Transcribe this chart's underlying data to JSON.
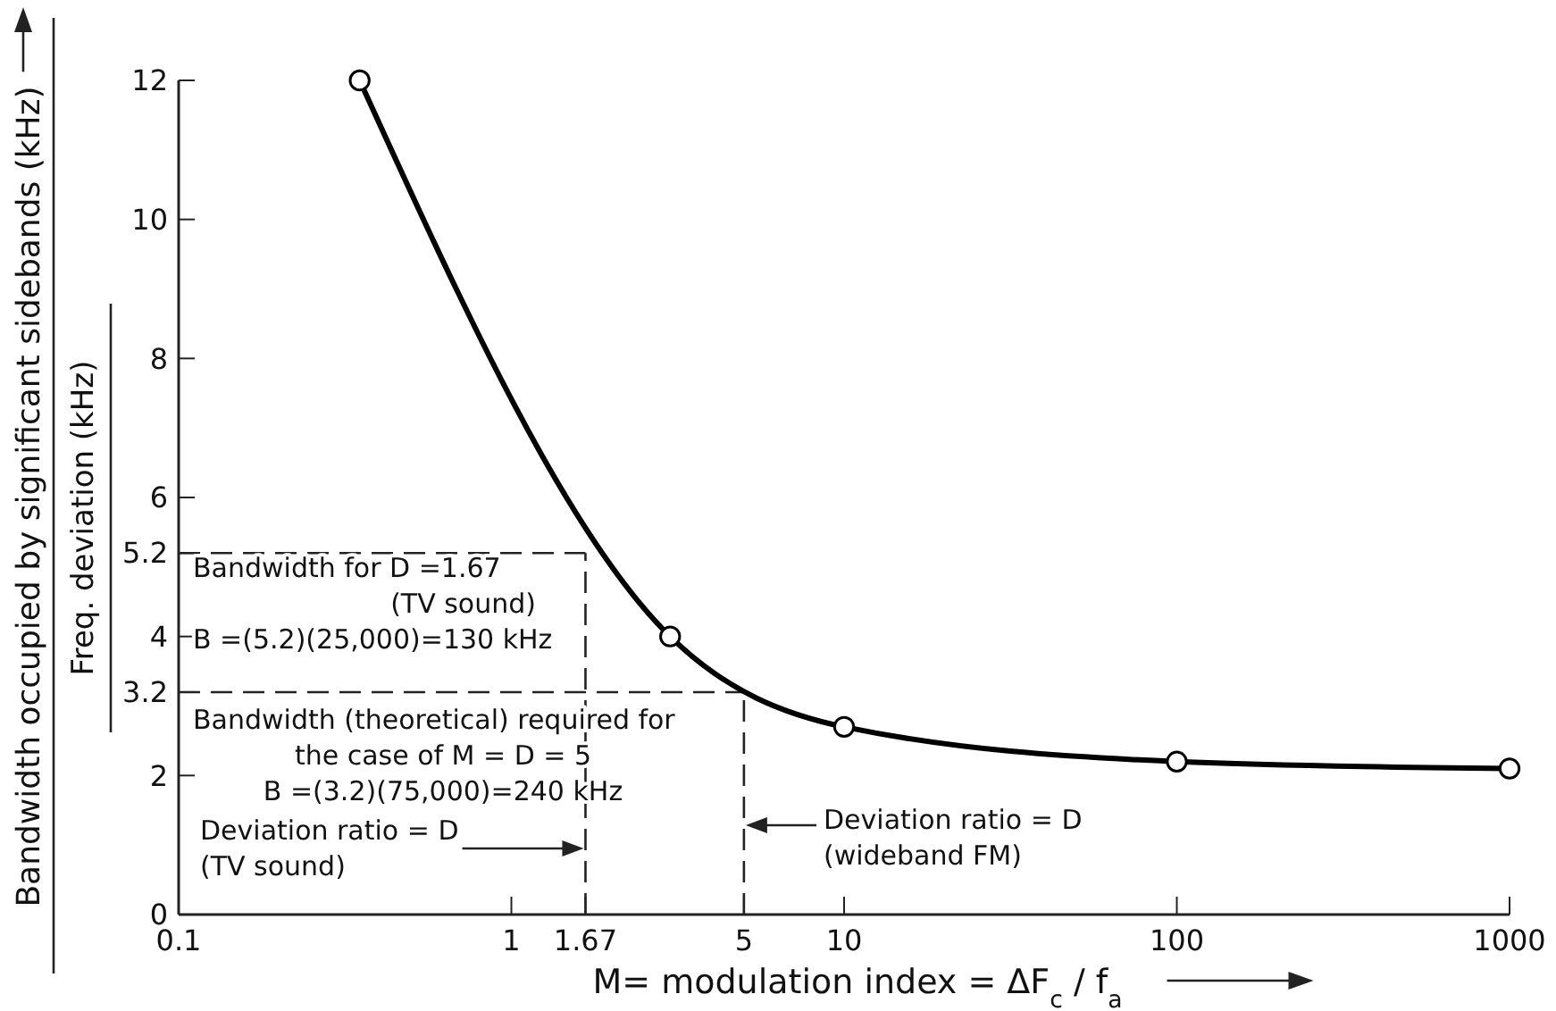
{
  "chart_data": {
    "type": "line",
    "xlabel": "M= modulation index = ΔF$_{c}$ / f$_{a}$",
    "ylabel": "Bandwidth occupied by significant sidebands (kHz)",
    "x": [
      0.35,
      3,
      10,
      100,
      1000
    ],
    "series": [
      {
        "color": "#000000",
        "values": [
          12,
          4,
          2.7,
          2.2,
          2.1
        ]
      }
    ],
    "marker": "circle",
    "log": "x",
    "grid": false,
    "xlim": [
      0.1,
      1000
    ],
    "xticks": [
      0.1,
      1,
      1.67,
      5,
      10,
      100,
      1000
    ],
    "ylim": [
      0,
      12
    ],
    "yticks": [
      0,
      2,
      3.2,
      4,
      5.2,
      6,
      8,
      10,
      12
    ],
    "ref_lines": [
      {
        "axis": "y",
        "value": 5.2,
        "line_style": "dashed"
      },
      {
        "axis": "y",
        "value": 3.2,
        "line_style": "dashed"
      },
      {
        "axis": "x",
        "value": 1.67,
        "line_style": "dashed"
      },
      {
        "axis": "x",
        "value": 5,
        "line_style": "dashed"
      }
    ],
    "annotations": [
      "Freq. deviation (kHz)",
      "Bandwidth for D =1.67\n(TV sound)\nB =(5.2)(25,000)=130 kHz",
      "Bandwidth (theoretical) required for\nthe case of M = D = 5\nB =(3.2)(75,000)=240 kHz",
      "Deviation ratio = D\n(TV sound)",
      "Deviation ratio = D\n(wideband FM)"
    ]
  }
}
